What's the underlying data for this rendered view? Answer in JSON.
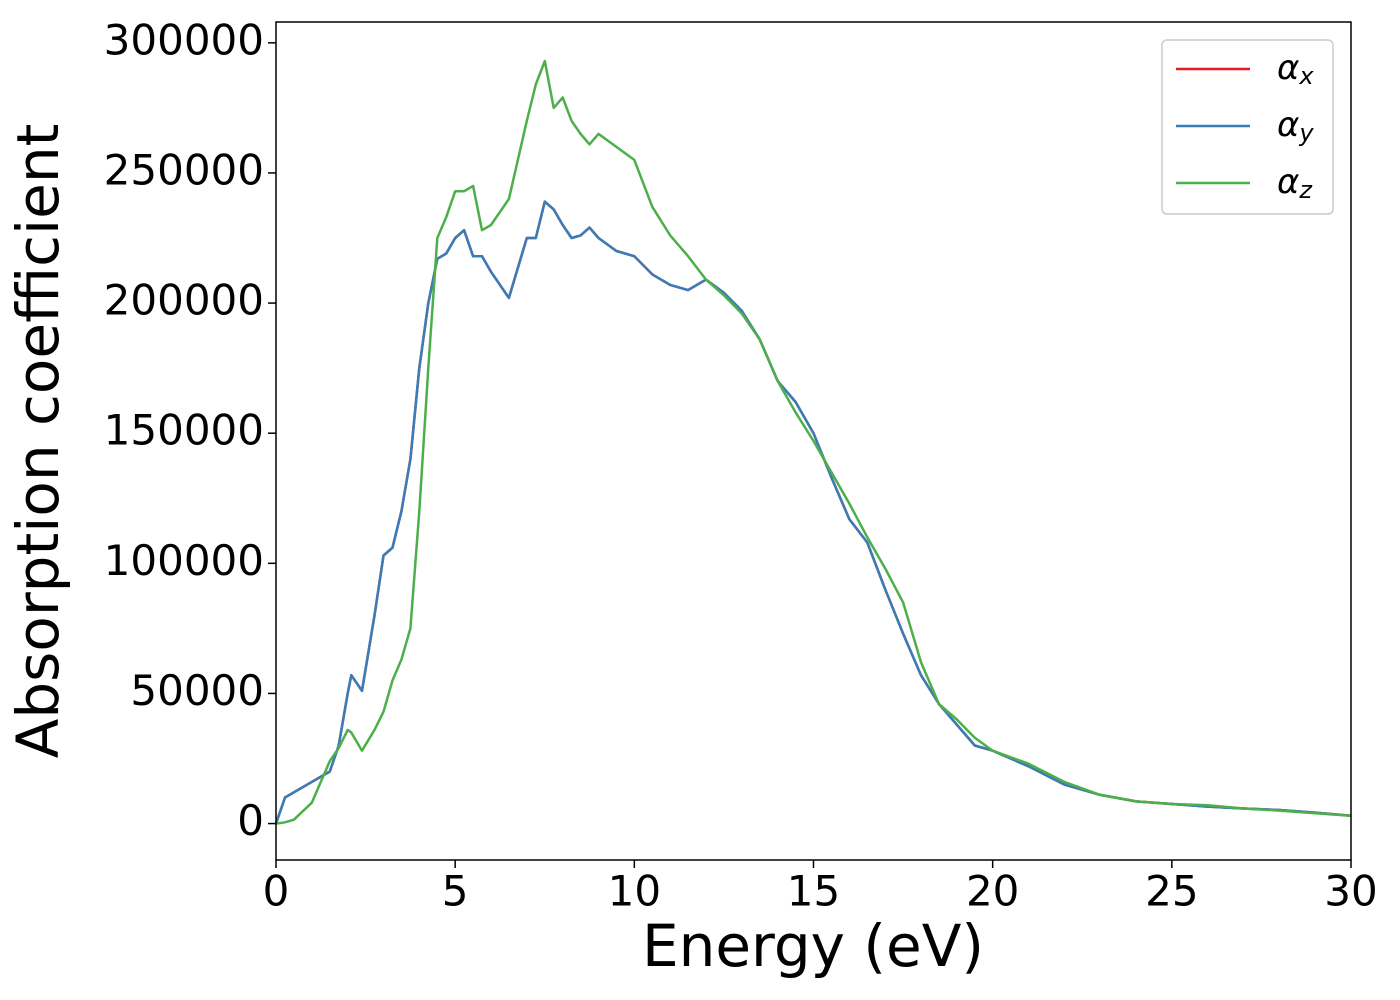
{
  "chart_data": {
    "type": "line",
    "xlabel": "Energy (eV)",
    "ylabel": "Absorption coefficient",
    "x": [
      0,
      0.25,
      0.5,
      1,
      1.5,
      1.75,
      2,
      2.1,
      2.4,
      2.75,
      3,
      3.25,
      3.5,
      3.75,
      4,
      4.25,
      4.5,
      4.75,
      5,
      5.25,
      5.5,
      5.75,
      6,
      6.5,
      7,
      7.25,
      7.5,
      7.75,
      8,
      8.25,
      8.5,
      8.75,
      9,
      9.5,
      10,
      10.5,
      11,
      11.5,
      12,
      12.5,
      13,
      13.5,
      14,
      14.5,
      15,
      15.5,
      16,
      16.5,
      17,
      17.5,
      18,
      18.5,
      19,
      19.5,
      20,
      21,
      22,
      23,
      24,
      25,
      26,
      27,
      28,
      29,
      30
    ],
    "series": [
      {
        "name": "αx",
        "color": "#e41a1c",
        "values": [
          0,
          10000,
          12000,
          16000,
          20000,
          30000,
          50000,
          57000,
          51000,
          80000,
          103000,
          106000,
          120000,
          140000,
          175000,
          200000,
          217000,
          219000,
          225000,
          228000,
          218000,
          218000,
          212000,
          202000,
          225000,
          225000,
          239000,
          236000,
          230000,
          225000,
          226000,
          229000,
          225000,
          220000,
          218000,
          211000,
          207000,
          205000,
          209000,
          204000,
          197000,
          186000,
          170000,
          162000,
          150000,
          133000,
          117000,
          108000,
          90000,
          73000,
          57000,
          46000,
          38000,
          30000,
          28000,
          22000,
          15000,
          11000,
          8500,
          7500,
          6500,
          5800,
          5200,
          4200,
          3000
        ]
      },
      {
        "name": "αy",
        "color": "#377eb8",
        "values": [
          0,
          10000,
          12000,
          16000,
          20000,
          30000,
          50000,
          57000,
          51000,
          80000,
          103000,
          106000,
          120000,
          140000,
          175000,
          200000,
          217000,
          219000,
          225000,
          228000,
          218000,
          218000,
          212000,
          202000,
          225000,
          225000,
          239000,
          236000,
          230000,
          225000,
          226000,
          229000,
          225000,
          220000,
          218000,
          211000,
          207000,
          205000,
          209000,
          204000,
          197000,
          186000,
          170000,
          162000,
          150000,
          133000,
          117000,
          108000,
          90000,
          73000,
          57000,
          46000,
          38000,
          30000,
          28000,
          22000,
          15000,
          11000,
          8500,
          7500,
          6500,
          5800,
          5200,
          4200,
          3000
        ]
      },
      {
        "name": "αz",
        "color": "#4daf4a",
        "values": [
          0,
          500,
          1500,
          8000,
          24000,
          29000,
          36000,
          35000,
          28000,
          36000,
          43000,
          55000,
          63000,
          75000,
          120000,
          175000,
          225000,
          233000,
          243000,
          243000,
          245000,
          228000,
          230000,
          240000,
          270000,
          284000,
          293000,
          275000,
          279000,
          270000,
          265000,
          261000,
          265000,
          260000,
          255000,
          237000,
          226000,
          218000,
          209000,
          203000,
          196000,
          186000,
          170000,
          158000,
          147000,
          135000,
          123000,
          110000,
          98000,
          85000,
          62000,
          46000,
          40000,
          33000,
          28000,
          23000,
          16000,
          11000,
          8500,
          7500,
          7000,
          5800,
          5000,
          4000,
          3000
        ]
      }
    ],
    "xlim": [
      0,
      30
    ],
    "xticks": [
      0,
      5,
      10,
      15,
      20,
      25,
      30
    ],
    "ylim": [
      -14000,
      308000
    ],
    "yticks": [
      0,
      50000,
      100000,
      150000,
      200000,
      250000,
      300000
    ],
    "legend": "upper right"
  }
}
